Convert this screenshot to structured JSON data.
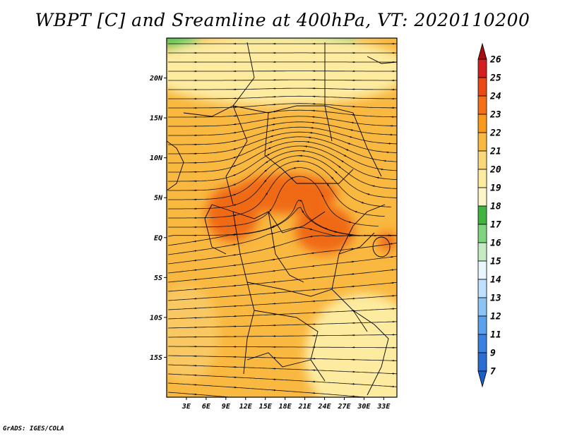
{
  "title": "WBPT [C] and Sreamline at 400hPa, VT: 2020110200",
  "credit": "GrADS: IGES/COLA",
  "map": {
    "lon_range": [
      0,
      35
    ],
    "lat_range": [
      -20,
      25
    ],
    "lon_ticks": [
      {
        "value": 3,
        "label": "3E"
      },
      {
        "value": 6,
        "label": "6E"
      },
      {
        "value": 9,
        "label": "9E"
      },
      {
        "value": 12,
        "label": "12E"
      },
      {
        "value": 15,
        "label": "15E"
      },
      {
        "value": 18,
        "label": "18E"
      },
      {
        "value": 21,
        "label": "21E"
      },
      {
        "value": 24,
        "label": "24E"
      },
      {
        "value": 27,
        "label": "27E"
      },
      {
        "value": 30,
        "label": "30E"
      },
      {
        "value": 33,
        "label": "33E"
      }
    ],
    "lat_ticks": [
      {
        "value": 20,
        "label": "20N"
      },
      {
        "value": 15,
        "label": "15N"
      },
      {
        "value": 10,
        "label": "10N"
      },
      {
        "value": 5,
        "label": "5N"
      },
      {
        "value": 0,
        "label": "EQ"
      },
      {
        "value": -5,
        "label": "5S"
      },
      {
        "value": -10,
        "label": "10S"
      },
      {
        "value": -15,
        "label": "15S"
      }
    ],
    "fields": [
      {
        "name": "green-cap",
        "lon": 20,
        "lat": 26,
        "rx": 9,
        "ry": 3.5,
        "color": "#55c855"
      },
      {
        "name": "green-corner",
        "lon": 2,
        "lat": 25,
        "rx": 3,
        "ry": 1.5,
        "color": "#55c855"
      },
      {
        "name": "band-north",
        "lon": 17,
        "lat": 21,
        "rx": 20,
        "ry": 4.5,
        "color": "#fdeba0"
      },
      {
        "name": "band-south",
        "lon": 30,
        "lat": -15,
        "rx": 9,
        "ry": 8,
        "color": "#fdeba0"
      },
      {
        "name": "band-west",
        "lon": 3,
        "lat": -12,
        "rx": 5,
        "ry": 6,
        "color": "#f9c862"
      },
      {
        "name": "hot-north",
        "lon": 18,
        "lat": 5.5,
        "rx": 8,
        "ry": 2.5,
        "color": "#f06a12"
      },
      {
        "name": "hot-west",
        "lon": 10,
        "lat": 3,
        "rx": 4,
        "ry": 3.5,
        "color": "#f06a12"
      },
      {
        "name": "hot-east",
        "lon": 24,
        "lat": 1,
        "rx": 4.5,
        "ry": 3,
        "color": "#f06a12"
      },
      {
        "name": "lake-victoria",
        "lon": 33.5,
        "lat": -0.5,
        "rx": 1.3,
        "ry": 1.2,
        "color": "#f06a12"
      }
    ],
    "streamline_flow": {
      "westerly_north": "eastward flow north of 12N",
      "vortex": {
        "lon": 20,
        "lat": 8
      }
    }
  },
  "colorbar": {
    "levels": [
      26,
      25,
      24,
      23,
      22,
      21,
      20,
      19,
      18,
      17,
      16,
      15,
      14,
      13,
      12,
      11,
      9,
      7
    ],
    "colors": [
      "#a50f0f",
      "#d42020",
      "#ea4a14",
      "#f37019",
      "#f99a1c",
      "#f9b840",
      "#fbd77a",
      "#fdeba0",
      "#fdf5c8",
      "#3fb43f",
      "#7fd47f",
      "#c3ecc3",
      "#e8f6ff",
      "#bfe0ff",
      "#8cc4f6",
      "#5aa2ec",
      "#3b82e0",
      "#2a6ed2",
      "#1a5ec8"
    ],
    "top_color": "#a50f0f",
    "bottom_color": "#1a5ec8"
  }
}
